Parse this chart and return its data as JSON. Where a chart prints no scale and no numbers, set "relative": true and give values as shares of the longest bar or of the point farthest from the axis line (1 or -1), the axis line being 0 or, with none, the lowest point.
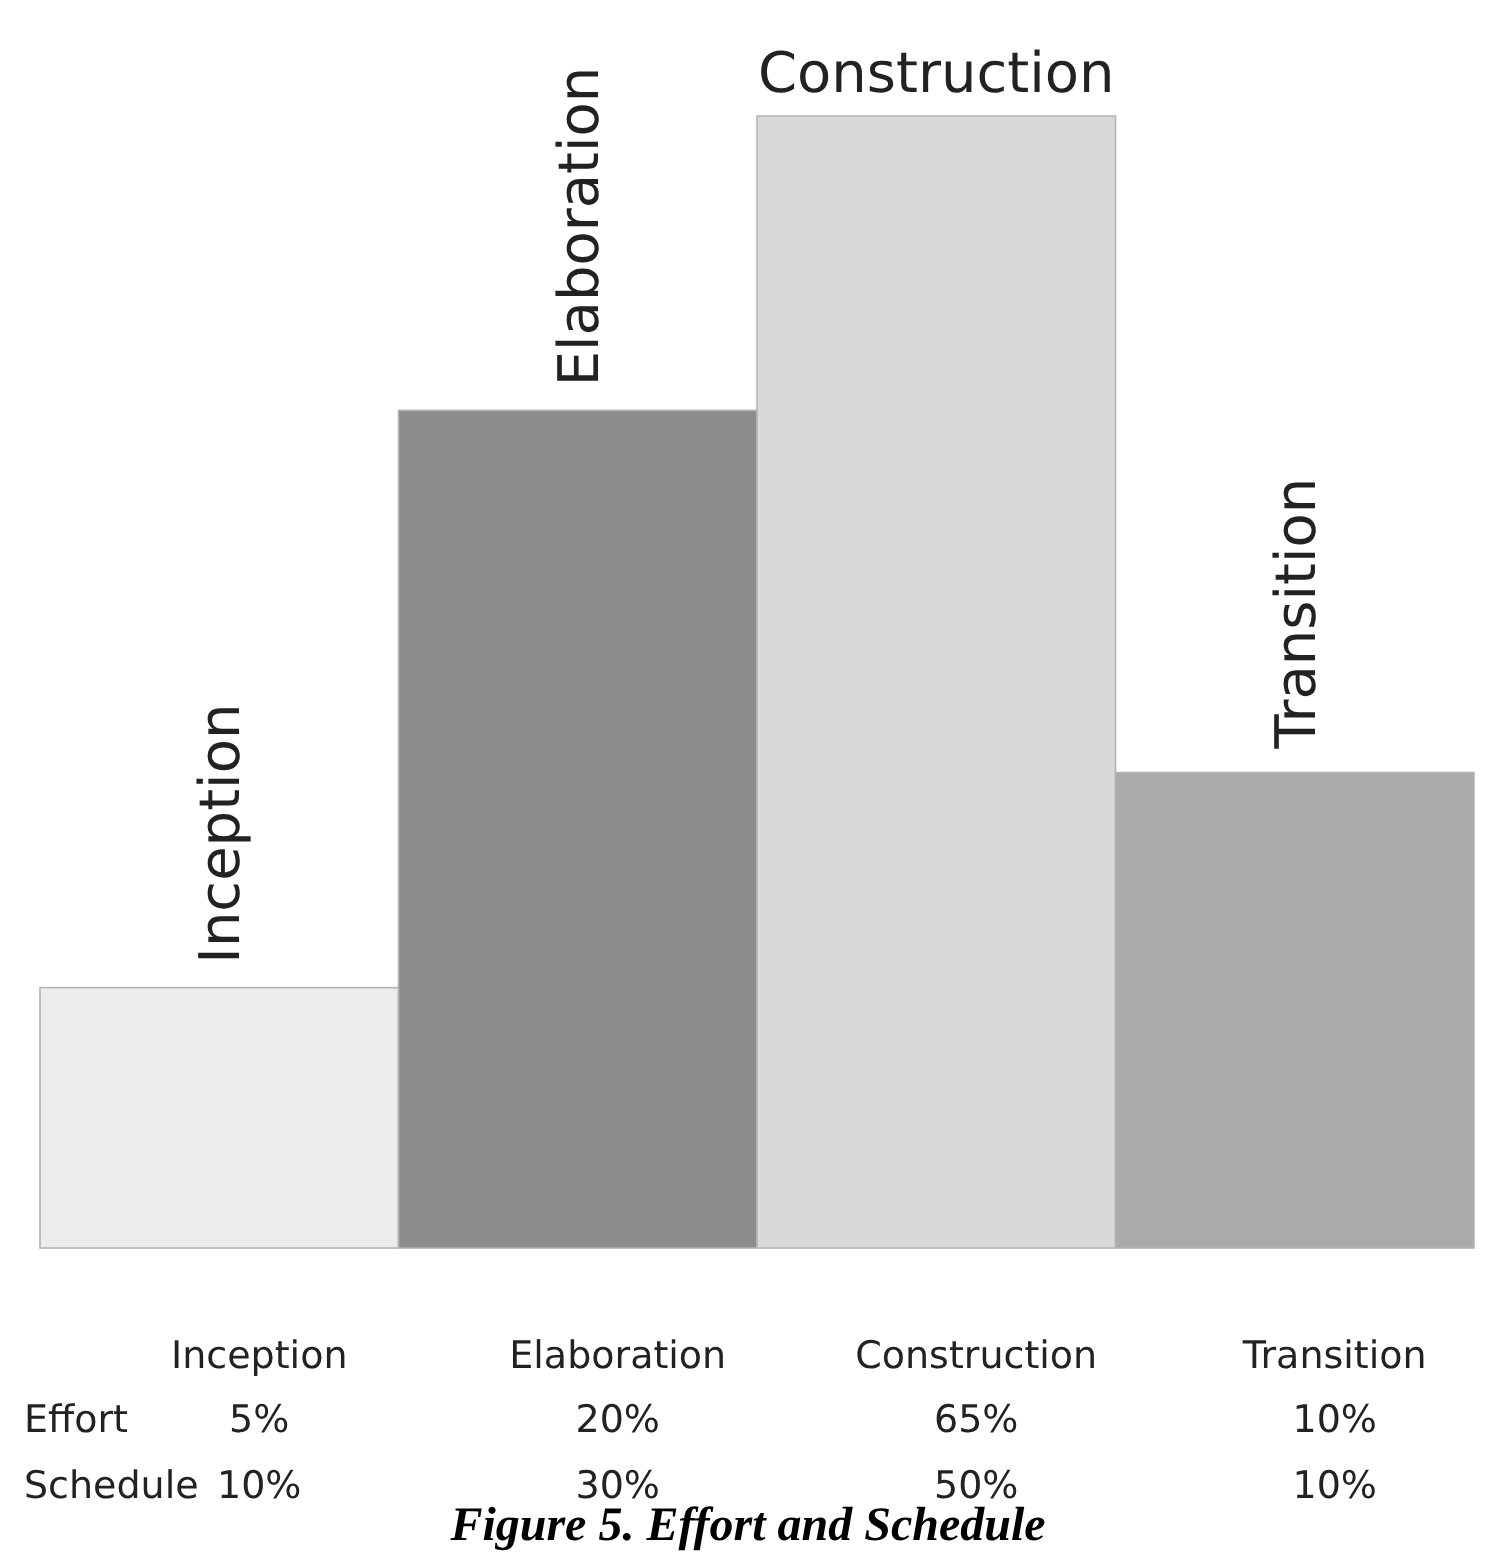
{
  "chart_data": {
    "type": "bar",
    "title": "Figure 5. Effort and Schedule",
    "relative": true,
    "categories": [
      "Inception",
      "Elaboration",
      "Construction",
      "Transition"
    ],
    "values": [
      0.23,
      0.74,
      1,
      0.42
    ],
    "colors": [
      "#ececec",
      "#8c8c8c",
      "#d8d8d8",
      "#aaaaaa"
    ],
    "annotations": [
      "Inception",
      "Elaboration",
      "Construction",
      "Transition",
      "Effort",
      "5%",
      "20%",
      "65%",
      "10%",
      "Schedule",
      "10%",
      "30%",
      "50%",
      "10%"
    ]
  }
}
